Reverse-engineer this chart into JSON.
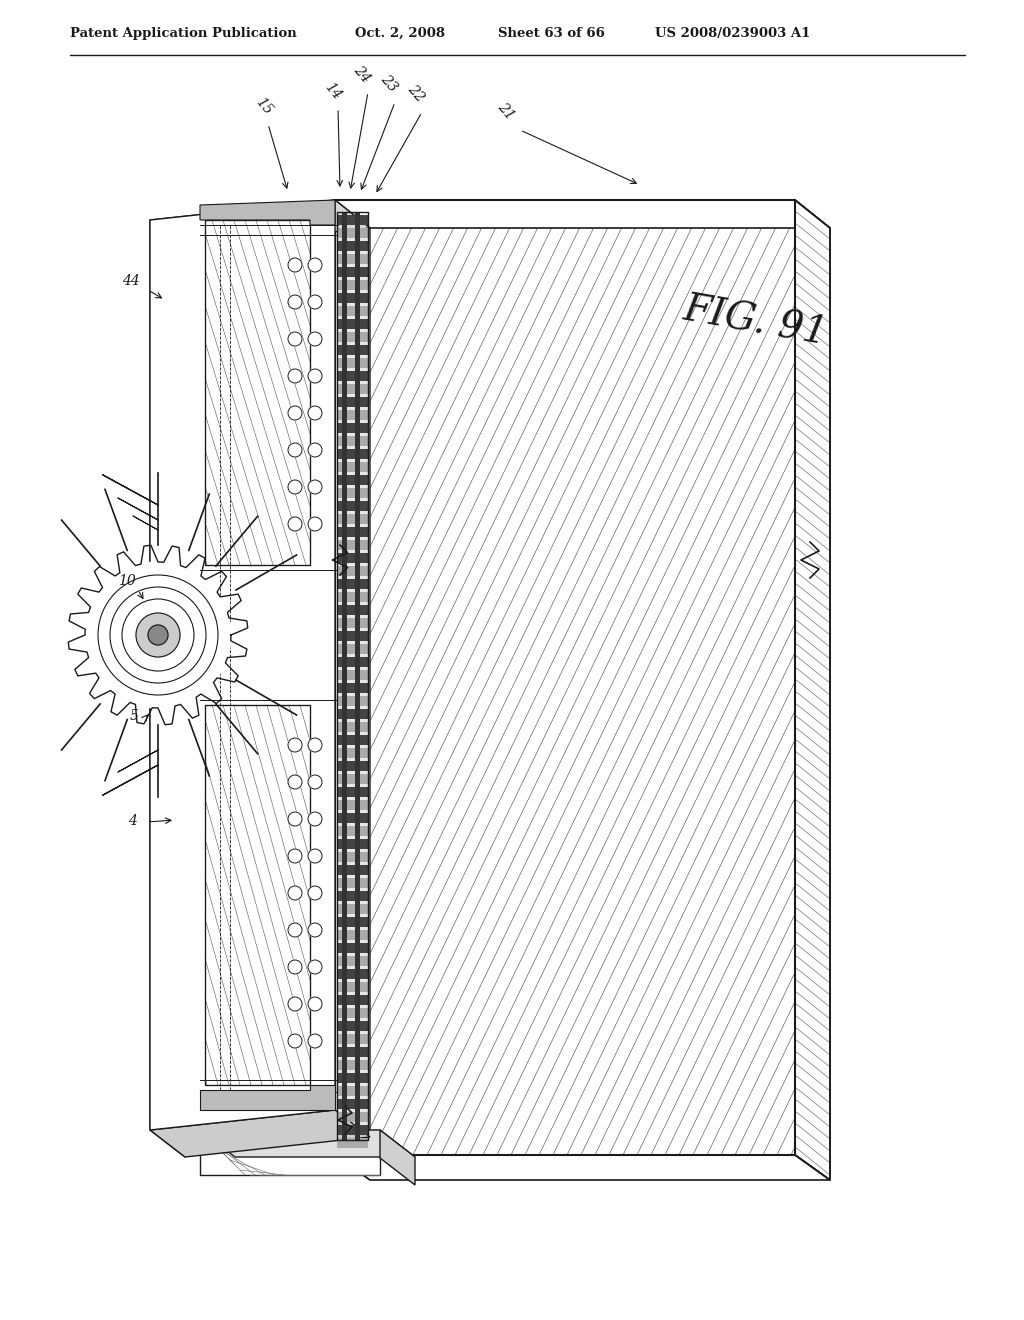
{
  "bg_color": "#ffffff",
  "line_color": "#1a1a1a",
  "header_text": "Patent Application Publication",
  "header_date": "Oct. 2, 2008",
  "header_sheet": "Sheet 63 of 66",
  "header_patent": "US 2008/0239003 A1",
  "fig_label": "FIG. 91",
  "page_width": 10.24,
  "page_height": 13.2,
  "dpi": 100
}
